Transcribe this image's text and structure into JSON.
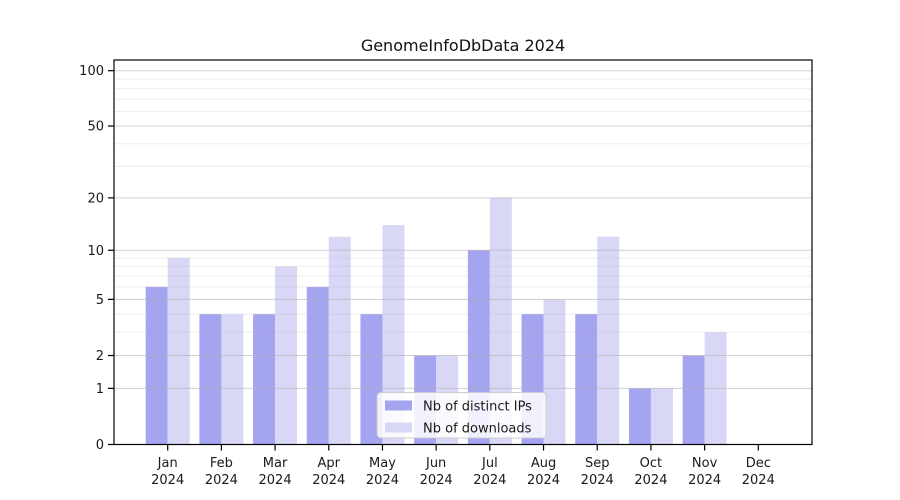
{
  "chart_data": {
    "type": "bar",
    "title": "GenomeInfoDbData 2024",
    "categories": [
      "Jan",
      "Feb",
      "Mar",
      "Apr",
      "May",
      "Jun",
      "Jul",
      "Aug",
      "Sep",
      "Oct",
      "Nov",
      "Dec"
    ],
    "year_label": "2024",
    "series": [
      {
        "name": "Nb of distinct IPs",
        "color": "#a4a4f0",
        "values": [
          6,
          4,
          4,
          6,
          4,
          2,
          10,
          4,
          4,
          1,
          2,
          0
        ]
      },
      {
        "name": "Nb of downloads",
        "color": "#d8d8f6",
        "values": [
          9,
          4,
          8,
          12,
          14,
          2,
          20,
          5,
          12,
          1,
          3,
          0
        ]
      }
    ],
    "xlabel": "",
    "ylabel": "",
    "yscale": "log10(1+x)",
    "ylim": [
      0,
      116
    ],
    "yticks_major": [
      0,
      1,
      2,
      5,
      10,
      20,
      50,
      100
    ],
    "yticks_minor": [
      3,
      4,
      6,
      7,
      8,
      9,
      30,
      40,
      60,
      70,
      80,
      90
    ],
    "grid": "horizontal",
    "legend_position": "inside-bottom-center",
    "colors": {
      "background": "#ffffff",
      "axis": "#000000",
      "major_grid": "#c9c9c9",
      "minor_grid": "#ededed",
      "text": "#1a1a1a",
      "legend_border": "#cccccc",
      "legend_background": "#ffffff"
    }
  }
}
